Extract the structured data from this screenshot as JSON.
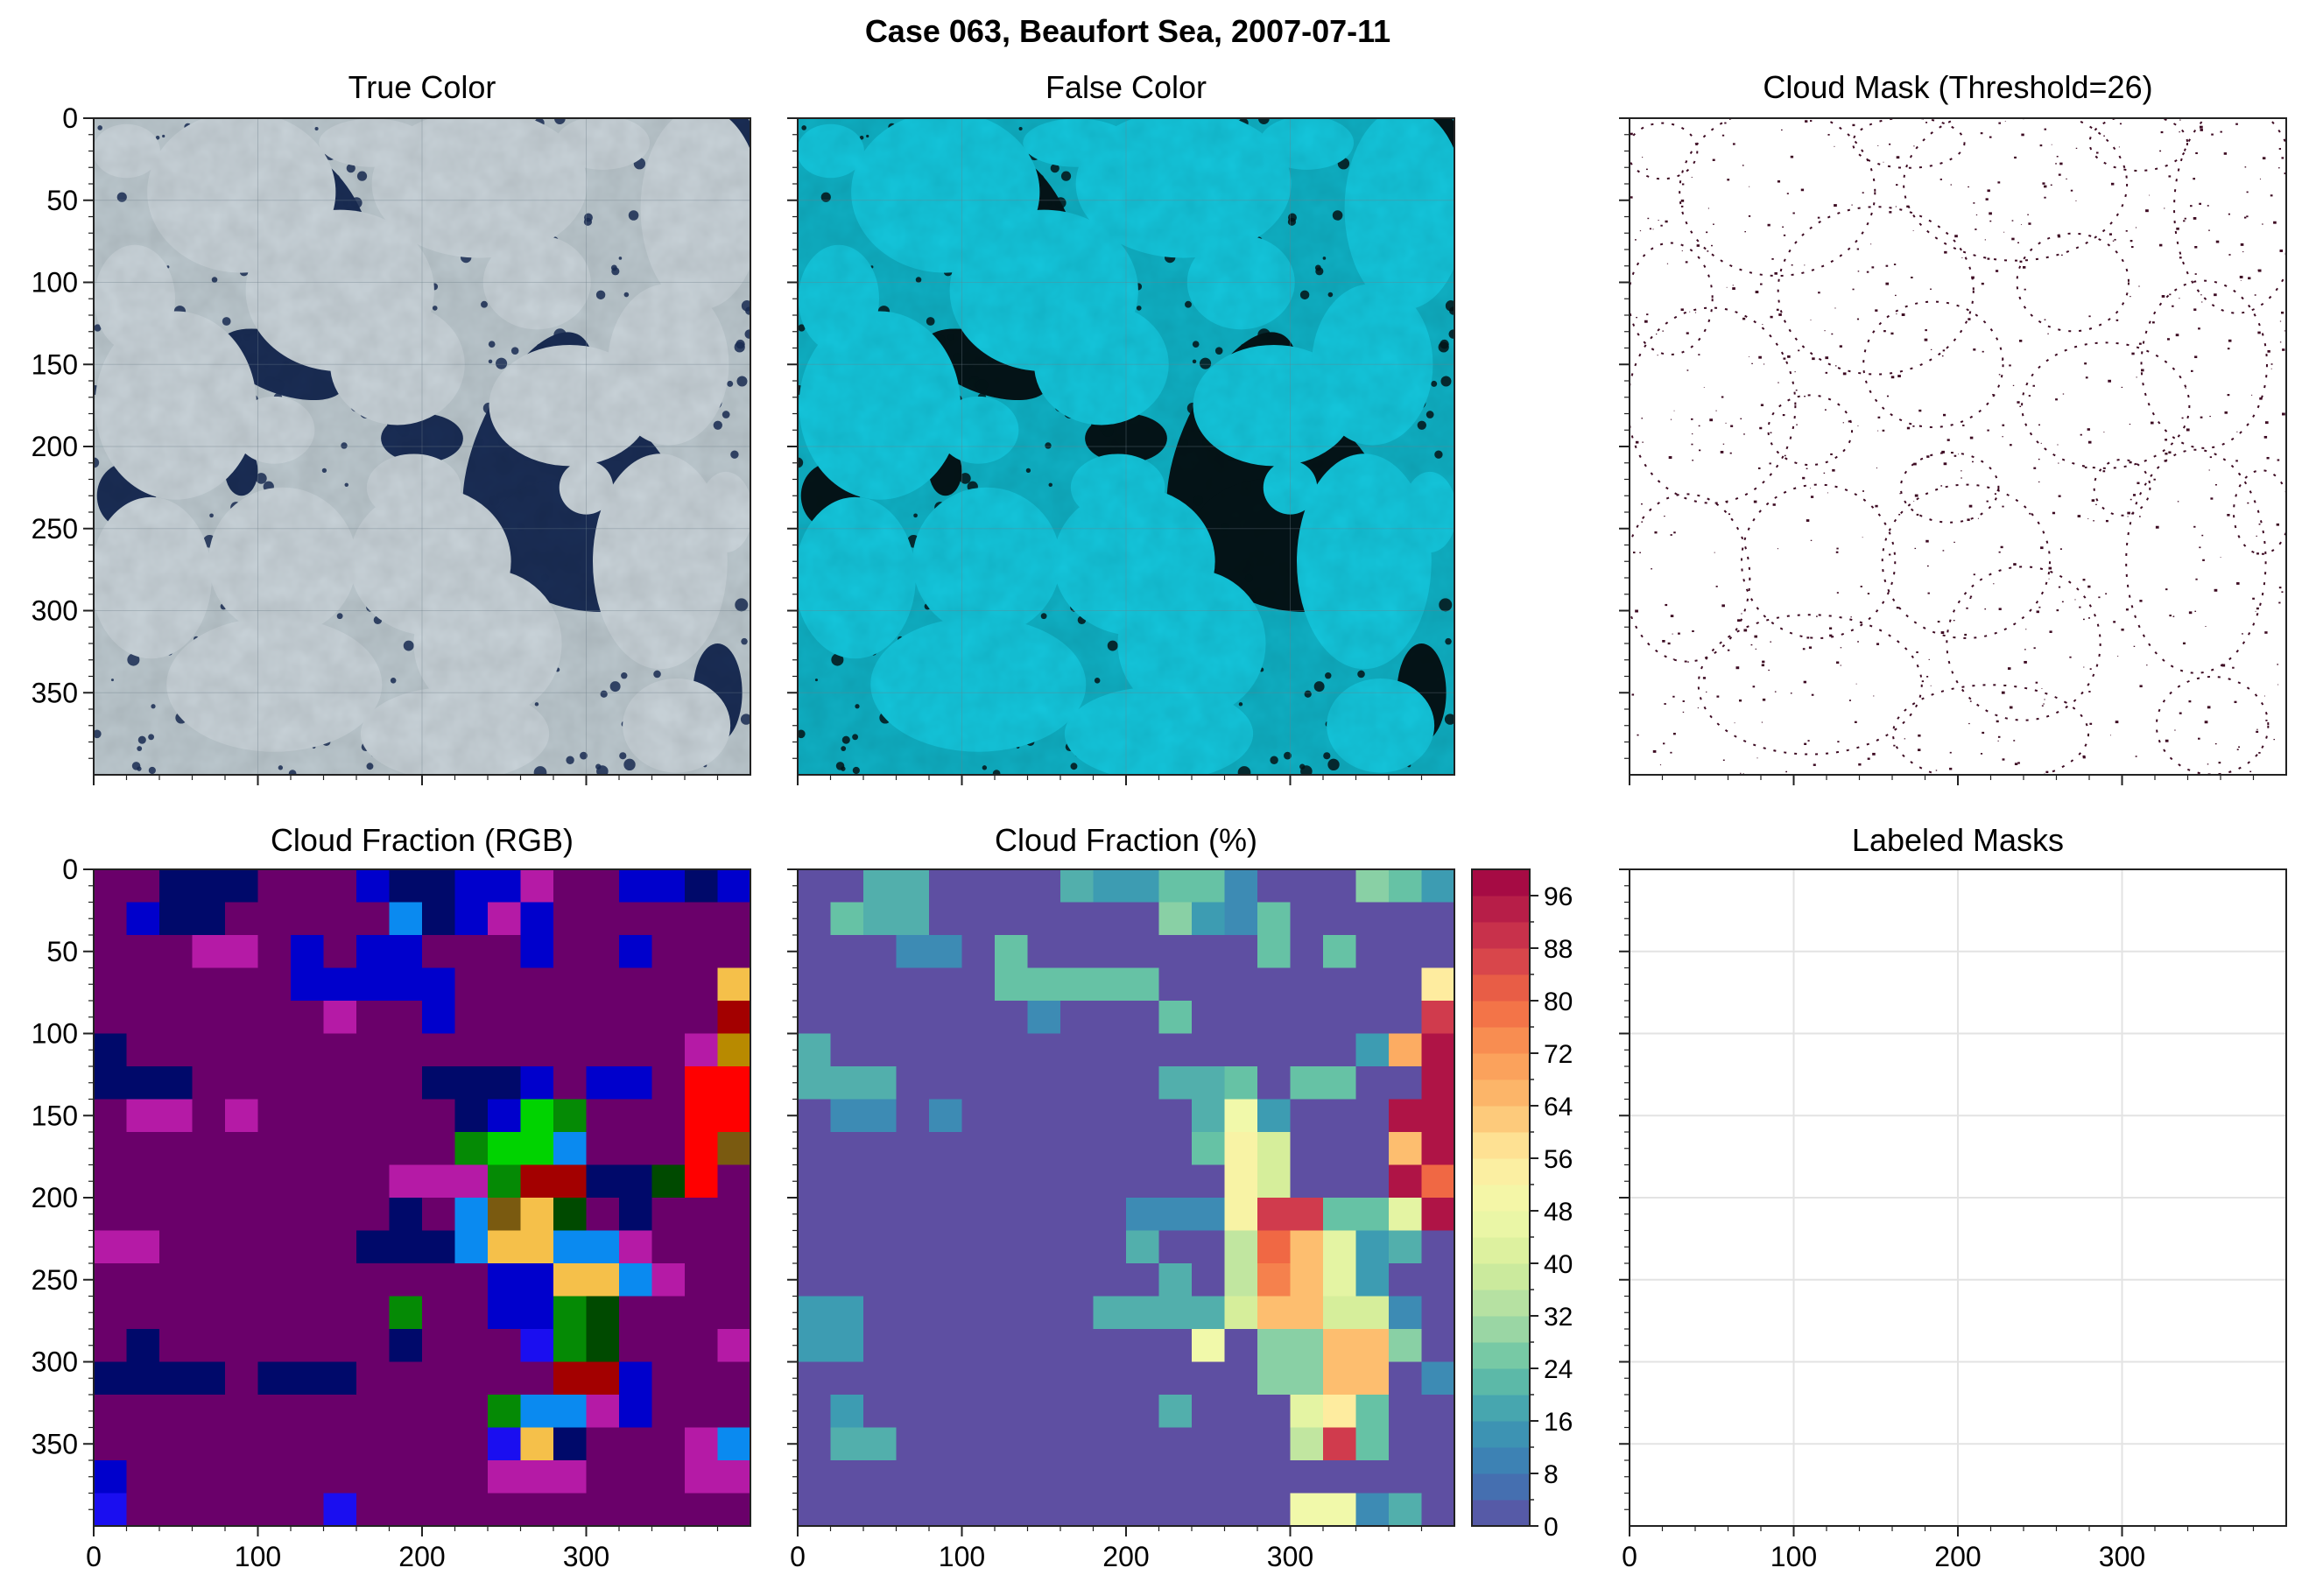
{
  "figure": {
    "suptitle": "Case 063, Beaufort Sea, 2007-07-11"
  },
  "colors": {
    "ice": "#c9d3d9",
    "ice_fc": "#14c6dc",
    "water": "#1a2d55",
    "water_fc": "#041418",
    "mask": "#3d0a22",
    "axis": "#222222",
    "grid": "#cfcfcf"
  },
  "panels": {
    "true_color": {
      "title": "True Color",
      "type": "image"
    },
    "false_color": {
      "title": "False Color",
      "type": "image"
    },
    "cloud_mask": {
      "title": "Cloud Mask (Threshold=26)",
      "type": "image"
    },
    "cf_rgb": {
      "title": "Cloud Fraction (RGB)",
      "type": "heatmap"
    },
    "cf_pct": {
      "title": "Cloud Fraction (%)",
      "type": "heatmap"
    },
    "labeled": {
      "title": "Labeled Masks",
      "type": "empty"
    }
  },
  "axes": {
    "y_ticks": [
      "0",
      "50",
      "100",
      "150",
      "200",
      "250",
      "300",
      "350"
    ],
    "x_ticks": [
      "0",
      "100",
      "200",
      "300"
    ]
  },
  "colorbar": {
    "ticks": [
      "0",
      "8",
      "16",
      "24",
      "32",
      "40",
      "48",
      "56",
      "64",
      "72",
      "80",
      "88",
      "96"
    ],
    "range": [
      0,
      100
    ],
    "colormap": "Spectral_r"
  },
  "chart_data": [
    {
      "type": "heatmap",
      "title": "Cloud Fraction (%)",
      "xlim": [
        0,
        400
      ],
      "ylim": [
        400,
        0
      ],
      "cell_size": 20,
      "rows": 20,
      "cols": 20,
      "values": [
        [
          0,
          0,
          20,
          20,
          0,
          0,
          0,
          0,
          20,
          16,
          16,
          24,
          24,
          12,
          0,
          0,
          0,
          28,
          24,
          16
        ],
        [
          0,
          24,
          20,
          20,
          0,
          0,
          0,
          0,
          0,
          0,
          0,
          28,
          16,
          12,
          24,
          0,
          0,
          0,
          0,
          0
        ],
        [
          0,
          0,
          0,
          12,
          12,
          0,
          24,
          0,
          0,
          0,
          0,
          0,
          0,
          0,
          24,
          0,
          24,
          0,
          0,
          0
        ],
        [
          0,
          0,
          0,
          0,
          0,
          0,
          24,
          24,
          24,
          24,
          24,
          0,
          0,
          0,
          0,
          0,
          0,
          0,
          0,
          56
        ],
        [
          0,
          0,
          0,
          0,
          0,
          0,
          0,
          12,
          0,
          0,
          0,
          24,
          0,
          0,
          0,
          0,
          0,
          0,
          0,
          88
        ],
        [
          20,
          0,
          0,
          0,
          0,
          0,
          0,
          0,
          0,
          0,
          0,
          0,
          0,
          0,
          0,
          0,
          0,
          16,
          68,
          96
        ],
        [
          20,
          20,
          20,
          0,
          0,
          0,
          0,
          0,
          0,
          0,
          0,
          20,
          20,
          24,
          0,
          24,
          24,
          0,
          0,
          96
        ],
        [
          0,
          12,
          12,
          0,
          12,
          0,
          0,
          0,
          0,
          0,
          0,
          0,
          20,
          48,
          16,
          0,
          0,
          0,
          96,
          96
        ],
        [
          0,
          0,
          0,
          0,
          0,
          0,
          0,
          0,
          0,
          0,
          0,
          0,
          24,
          52,
          40,
          0,
          0,
          0,
          64,
          96
        ],
        [
          0,
          0,
          0,
          0,
          0,
          0,
          0,
          0,
          0,
          0,
          0,
          0,
          0,
          52,
          40,
          0,
          0,
          0,
          96,
          80
        ],
        [
          0,
          0,
          0,
          0,
          0,
          0,
          0,
          0,
          0,
          0,
          12,
          12,
          12,
          52,
          88,
          88,
          24,
          24,
          44,
          96
        ],
        [
          0,
          0,
          0,
          0,
          0,
          0,
          0,
          0,
          0,
          0,
          20,
          0,
          0,
          36,
          80,
          64,
          44,
          16,
          20,
          0
        ],
        [
          0,
          0,
          0,
          0,
          0,
          0,
          0,
          0,
          0,
          0,
          0,
          20,
          0,
          36,
          76,
          64,
          44,
          16,
          0,
          0
        ],
        [
          16,
          16,
          0,
          0,
          0,
          0,
          0,
          0,
          0,
          20,
          20,
          20,
          20,
          40,
          64,
          64,
          40,
          40,
          12,
          0
        ],
        [
          16,
          16,
          0,
          0,
          0,
          0,
          0,
          0,
          0,
          0,
          0,
          0,
          48,
          0,
          28,
          28,
          64,
          64,
          28,
          0
        ],
        [
          0,
          0,
          0,
          0,
          0,
          0,
          0,
          0,
          0,
          0,
          0,
          0,
          0,
          0,
          28,
          28,
          64,
          64,
          0,
          12
        ],
        [
          0,
          16,
          0,
          0,
          0,
          0,
          0,
          0,
          0,
          0,
          0,
          20,
          0,
          0,
          0,
          44,
          56,
          24,
          0,
          0
        ],
        [
          0,
          20,
          20,
          0,
          0,
          0,
          0,
          0,
          0,
          0,
          0,
          0,
          0,
          0,
          0,
          36,
          88,
          24,
          0,
          0
        ],
        [
          0,
          0,
          0,
          0,
          0,
          0,
          0,
          0,
          0,
          0,
          0,
          0,
          0,
          0,
          0,
          0,
          0,
          0,
          0,
          0
        ],
        [
          0,
          0,
          0,
          0,
          0,
          0,
          0,
          0,
          0,
          0,
          0,
          0,
          0,
          0,
          0,
          48,
          48,
          12,
          20,
          0
        ]
      ]
    },
    {
      "type": "heatmap",
      "title": "Cloud Fraction (RGB)",
      "xlim": [
        0,
        400
      ],
      "ylim": [
        400,
        0
      ],
      "cell_size": 20,
      "palette": [
        "#6a006a",
        "#00096a",
        "#0000cc",
        "#b51aa6",
        "#0a8af0",
        "#00d300",
        "#058a05",
        "#f5c04a",
        "#a30000",
        "#ff0000",
        "#7a5a10",
        "#004a00",
        "#1a0ef0",
        "#b88a00"
      ],
      "cells": [
        [
          0,
          0,
          1,
          1,
          1,
          0,
          0,
          0,
          2,
          1,
          1,
          2,
          2,
          3,
          0,
          0,
          2,
          2,
          1,
          2
        ],
        [
          0,
          2,
          1,
          1,
          0,
          0,
          0,
          0,
          0,
          4,
          1,
          2,
          3,
          2,
          0,
          0,
          0,
          0,
          0,
          0
        ],
        [
          0,
          0,
          0,
          3,
          3,
          0,
          2,
          0,
          2,
          2,
          0,
          0,
          0,
          2,
          0,
          0,
          2,
          0,
          0,
          0
        ],
        [
          0,
          0,
          0,
          0,
          0,
          0,
          2,
          2,
          2,
          2,
          2,
          0,
          0,
          0,
          0,
          0,
          0,
          0,
          0,
          7
        ],
        [
          0,
          0,
          0,
          0,
          0,
          0,
          0,
          3,
          0,
          0,
          2,
          0,
          0,
          0,
          0,
          0,
          0,
          0,
          0,
          8
        ],
        [
          1,
          0,
          0,
          0,
          0,
          0,
          0,
          0,
          0,
          0,
          0,
          0,
          0,
          0,
          0,
          0,
          0,
          0,
          3,
          13
        ],
        [
          1,
          1,
          1,
          0,
          0,
          0,
          0,
          0,
          0,
          0,
          1,
          1,
          1,
          2,
          0,
          2,
          2,
          0,
          9,
          9
        ],
        [
          0,
          3,
          3,
          0,
          3,
          0,
          0,
          0,
          0,
          0,
          0,
          1,
          2,
          5,
          6,
          0,
          0,
          0,
          9,
          9
        ],
        [
          0,
          0,
          0,
          0,
          0,
          0,
          0,
          0,
          0,
          0,
          0,
          6,
          5,
          5,
          4,
          0,
          0,
          0,
          9,
          10
        ],
        [
          0,
          0,
          0,
          0,
          0,
          0,
          0,
          0,
          0,
          3,
          3,
          3,
          6,
          8,
          8,
          1,
          1,
          11,
          9,
          0
        ],
        [
          0,
          0,
          0,
          0,
          0,
          0,
          0,
          0,
          0,
          1,
          0,
          4,
          10,
          7,
          11,
          0,
          1,
          0,
          0,
          0
        ],
        [
          3,
          3,
          0,
          0,
          0,
          0,
          0,
          0,
          1,
          1,
          1,
          4,
          7,
          7,
          4,
          4,
          3,
          0,
          0,
          0
        ],
        [
          0,
          0,
          0,
          0,
          0,
          0,
          0,
          0,
          0,
          0,
          0,
          0,
          2,
          2,
          7,
          7,
          4,
          3,
          0,
          0
        ],
        [
          0,
          0,
          0,
          0,
          0,
          0,
          0,
          0,
          0,
          6,
          0,
          0,
          2,
          2,
          6,
          11,
          0,
          0,
          0,
          0
        ],
        [
          0,
          1,
          0,
          0,
          0,
          0,
          0,
          0,
          0,
          1,
          0,
          0,
          0,
          12,
          6,
          11,
          0,
          0,
          0,
          3
        ],
        [
          1,
          1,
          1,
          1,
          0,
          1,
          1,
          1,
          0,
          0,
          0,
          0,
          0,
          0,
          8,
          8,
          2,
          0,
          0,
          0
        ],
        [
          0,
          0,
          0,
          0,
          0,
          0,
          0,
          0,
          0,
          0,
          0,
          0,
          6,
          4,
          4,
          3,
          2,
          0,
          0,
          0
        ],
        [
          0,
          0,
          0,
          0,
          0,
          0,
          0,
          0,
          0,
          0,
          0,
          0,
          12,
          7,
          1,
          0,
          0,
          0,
          3,
          4
        ],
        [
          2,
          0,
          0,
          0,
          0,
          0,
          0,
          0,
          0,
          0,
          0,
          0,
          3,
          3,
          3,
          0,
          0,
          0,
          3,
          3
        ],
        [
          12,
          0,
          0,
          0,
          0,
          0,
          0,
          12,
          0,
          0,
          0,
          0,
          0,
          0,
          0,
          0,
          0,
          0,
          0,
          0
        ]
      ]
    }
  ]
}
